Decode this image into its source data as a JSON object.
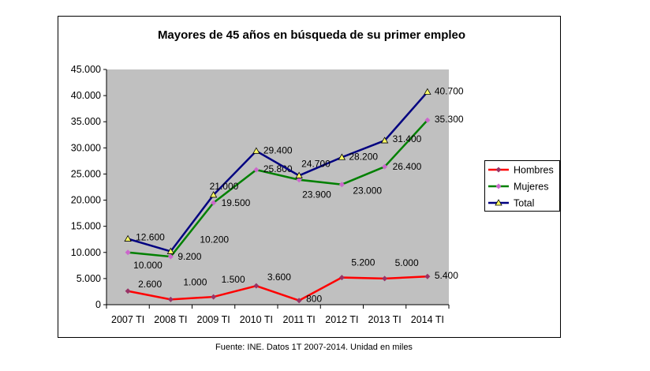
{
  "chart_data": {
    "type": "line",
    "title": "Mayores de 45 años en búsqueda de su primer empleo",
    "categories": [
      "2007 TI",
      "2008 TI",
      "2009 TI",
      "2010 TI",
      "2011 TI",
      "2012 TI",
      "2013 TI",
      "2014 TI"
    ],
    "ylim": [
      0,
      45000
    ],
    "yticks": [
      0,
      5000,
      10000,
      15000,
      20000,
      25000,
      30000,
      35000,
      40000,
      45000
    ],
    "ytick_labels": [
      "0",
      "5.000",
      "10.000",
      "15.000",
      "20.000",
      "25.000",
      "30.000",
      "35.000",
      "40.000",
      "45.000"
    ],
    "grid": false,
    "plot_background": "#c0c0c0",
    "legend_position": "right",
    "series": [
      {
        "name": "Hombres",
        "color": "#ff0000",
        "marker": "diamond",
        "marker_color": "#993366",
        "values": [
          2600,
          1000,
          1500,
          3600,
          800,
          5200,
          5000,
          5400
        ],
        "labels": [
          "2.600",
          "1.000",
          "1.500",
          "3.600",
          "800",
          "5.200",
          "5.000",
          "5.400"
        ]
      },
      {
        "name": "Mujeres",
        "color": "#008000",
        "marker": "diamond",
        "marker_color": "#cc66cc",
        "values": [
          10000,
          9200,
          19500,
          25800,
          23900,
          23000,
          26400,
          35300
        ],
        "labels": [
          "10.000",
          "9.200",
          "19.500",
          "25.800",
          "23.900",
          "23.000",
          "26.400",
          "35.300"
        ]
      },
      {
        "name": "Total",
        "color": "#000080",
        "marker": "triangle",
        "marker_color": "#ffff66",
        "values": [
          12600,
          10200,
          21000,
          29400,
          24700,
          28200,
          31400,
          40700
        ],
        "labels": [
          "12.600",
          "10.200",
          "21.000",
          "29.400",
          "24.700",
          "28.200",
          "31.400",
          "40.700"
        ]
      }
    ]
  },
  "footer": {
    "source": "Fuente: INE. Datos 1T 2007-2014. Unidad en miles"
  }
}
